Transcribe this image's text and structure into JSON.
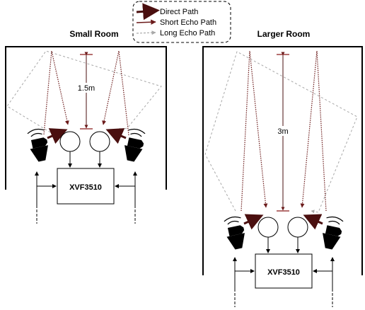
{
  "legend": {
    "direct": "Direct Path",
    "short": "Short Echo Path",
    "long": "Long Echo Path"
  },
  "rooms": {
    "small": {
      "title": "Small Room",
      "distance": "1.5m",
      "chip": "XVF3510"
    },
    "large": {
      "title": "Larger Room",
      "distance": "3m",
      "chip": "XVF3510"
    }
  },
  "colors": {
    "direct": "#4a0f0f",
    "short": "#6b1a1a",
    "long": "#a8a8a8",
    "line": "#000000"
  },
  "icons": [
    "speaker-icon",
    "microphone-icon",
    "arrow-icon"
  ]
}
